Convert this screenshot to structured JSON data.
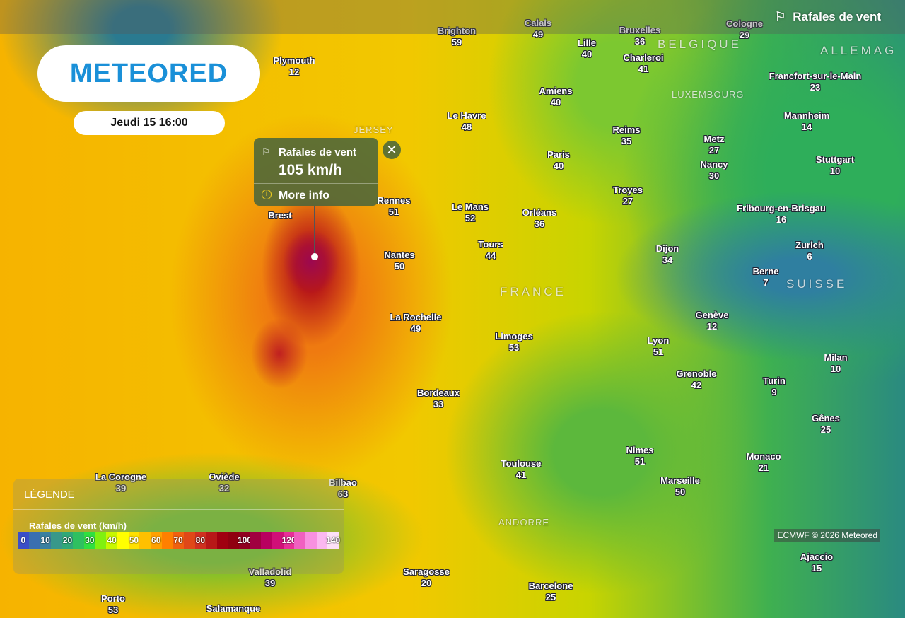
{
  "layer": {
    "title": "Rafales de vent",
    "icon": "wind-flag-icon"
  },
  "brand": {
    "logo": "METEORED"
  },
  "date": "Jeudi 15 16:00",
  "popup": {
    "title": "Rafales de vent",
    "value": "105 km/h",
    "more": "More info"
  },
  "legend": {
    "heading": "LÉGENDE",
    "unit": "Rafales de vent (km/h)",
    "stops": [
      {
        "label": "0",
        "color": "#3a4fc8"
      },
      {
        "label": "",
        "color": "#3a6fb0"
      },
      {
        "label": "10",
        "color": "#3a80a0"
      },
      {
        "label": "",
        "color": "#38988a"
      },
      {
        "label": "20",
        "color": "#30a878"
      },
      {
        "label": "",
        "color": "#2fc060"
      },
      {
        "label": "30",
        "color": "#30e040"
      },
      {
        "label": "",
        "color": "#80f010"
      },
      {
        "label": "40",
        "color": "#c8f800"
      },
      {
        "label": "",
        "color": "#ffff00"
      },
      {
        "label": "50",
        "color": "#ffe000"
      },
      {
        "label": "",
        "color": "#ffc000"
      },
      {
        "label": "60",
        "color": "#ffa000"
      },
      {
        "label": "",
        "color": "#ff8000"
      },
      {
        "label": "70",
        "color": "#f06010"
      },
      {
        "label": "",
        "color": "#e04818"
      },
      {
        "label": "80",
        "color": "#d03020"
      },
      {
        "label": "",
        "color": "#b81818"
      },
      {
        "label": "",
        "color": "#a00010"
      },
      {
        "label": "",
        "color": "#900010"
      },
      {
        "label": "100",
        "color": "#900020"
      },
      {
        "label": "",
        "color": "#a00040"
      },
      {
        "label": "",
        "color": "#b80060"
      },
      {
        "label": "",
        "color": "#d01078"
      },
      {
        "label": "120",
        "color": "#e83098"
      },
      {
        "label": "",
        "color": "#f060c0"
      },
      {
        "label": "",
        "color": "#f890e0"
      },
      {
        "label": "",
        "color": "#fbb8f0"
      },
      {
        "label": "140",
        "color": "#fde0f8"
      }
    ]
  },
  "credit": "ECMWF © 2026 Meteored",
  "countries": [
    "BELGIQUE",
    "LUXEMBOURG",
    "FRANCE",
    "SUISSE",
    "ANDORRE",
    "JERSEY",
    "ALLEMAG"
  ],
  "cities": [
    {
      "name": "Plymouth",
      "value": "12"
    },
    {
      "name": "Brighton",
      "value": "59"
    },
    {
      "name": "Calais",
      "value": "49"
    },
    {
      "name": "Lille",
      "value": "40"
    },
    {
      "name": "Bruxelles",
      "value": "36"
    },
    {
      "name": "Charleroi",
      "value": "41"
    },
    {
      "name": "Cologne",
      "value": "29"
    },
    {
      "name": "Francfort-sur-le-Main",
      "value": "23"
    },
    {
      "name": "Mannheim",
      "value": "14"
    },
    {
      "name": "Le Havre",
      "value": "48"
    },
    {
      "name": "Amiens",
      "value": "40"
    },
    {
      "name": "Reims",
      "value": "35"
    },
    {
      "name": "Metz",
      "value": "27"
    },
    {
      "name": "Nancy",
      "value": "30"
    },
    {
      "name": "Stuttgart",
      "value": "10"
    },
    {
      "name": "Paris",
      "value": "40"
    },
    {
      "name": "Rennes",
      "value": "51"
    },
    {
      "name": "Le Mans",
      "value": "52"
    },
    {
      "name": "Orléans",
      "value": "36"
    },
    {
      "name": "Troyes",
      "value": "27"
    },
    {
      "name": "Fribourg-en-Brisgau",
      "value": "16"
    },
    {
      "name": "Nantes",
      "value": "50"
    },
    {
      "name": "Tours",
      "value": "44"
    },
    {
      "name": "Dijon",
      "value": "34"
    },
    {
      "name": "Zurich",
      "value": "6"
    },
    {
      "name": "Berne",
      "value": "7"
    },
    {
      "name": "La Rochelle",
      "value": "49"
    },
    {
      "name": "Limoges",
      "value": "53"
    },
    {
      "name": "Genève",
      "value": "12"
    },
    {
      "name": "Lyon",
      "value": "51"
    },
    {
      "name": "Milan",
      "value": "10"
    },
    {
      "name": "Grenoble",
      "value": "42"
    },
    {
      "name": "Turin",
      "value": "9"
    },
    {
      "name": "Bordeaux",
      "value": "33"
    },
    {
      "name": "Gênes",
      "value": "25"
    },
    {
      "name": "Toulouse",
      "value": "41"
    },
    {
      "name": "Nimes",
      "value": "51"
    },
    {
      "name": "Marseille",
      "value": "50"
    },
    {
      "name": "Monaco",
      "value": "21"
    },
    {
      "name": "La Corogne",
      "value": "39"
    },
    {
      "name": "Oviède",
      "value": "32"
    },
    {
      "name": "Bilbao",
      "value": "63"
    },
    {
      "name": "Valladolid",
      "value": "39"
    },
    {
      "name": "Saragosse",
      "value": "20"
    },
    {
      "name": "Barcelone",
      "value": "25"
    },
    {
      "name": "Porto",
      "value": "53"
    },
    {
      "name": "Salamanque",
      "value": ""
    },
    {
      "name": "Ajaccio",
      "value": "15"
    },
    {
      "name": "Brest",
      "value": ""
    }
  ]
}
